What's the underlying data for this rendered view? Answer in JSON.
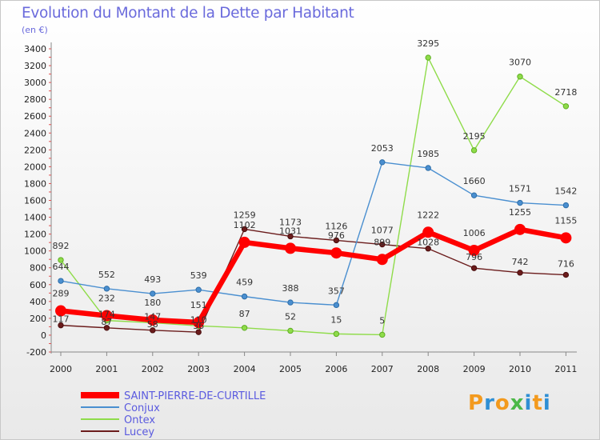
{
  "chart_data": {
    "type": "line",
    "title": "Evolution du Montant de la Dette par Habitant",
    "subtitle": "(en €)",
    "xlabel": "",
    "ylabel": "",
    "categories": [
      "2000",
      "2001",
      "2002",
      "2003",
      "2004",
      "2005",
      "2006",
      "2007",
      "2008",
      "2009",
      "2010",
      "2011"
    ],
    "ylim": [
      -200,
      3400
    ],
    "yticks": [
      -200,
      0,
      200,
      400,
      600,
      800,
      1000,
      1200,
      1400,
      1600,
      1800,
      2000,
      2200,
      2400,
      2600,
      2800,
      3000,
      3200,
      3400
    ],
    "grid": false,
    "legend_position": "bottom-left",
    "series": [
      {
        "name": "SAINT-PIERRE-DE-CURTILLE",
        "color": "#ff0000",
        "values": [
          289,
          232,
          180,
          151,
          1102,
          1031,
          976,
          899,
          1222,
          1006,
          1255,
          1155
        ]
      },
      {
        "name": "Conjux",
        "color": "#4a8fd0",
        "values": [
          644,
          552,
          493,
          539,
          459,
          388,
          357,
          2053,
          1985,
          1660,
          1571,
          1542
        ]
      },
      {
        "name": "Ontex",
        "color": "#8fdc4a",
        "values": [
          892,
          174,
          147,
          110,
          87,
          52,
          15,
          5,
          3295,
          2195,
          3070,
          2718
        ]
      },
      {
        "name": "Lucey",
        "color": "#6b1c1c",
        "values": [
          117,
          87,
          58,
          36,
          1259,
          1173,
          1126,
          1077,
          1028,
          796,
          742,
          716
        ]
      }
    ]
  },
  "logo": {
    "text": "Proxiti",
    "letters": [
      "P",
      "r",
      "o",
      "x",
      "i",
      "t",
      "i"
    ]
  }
}
